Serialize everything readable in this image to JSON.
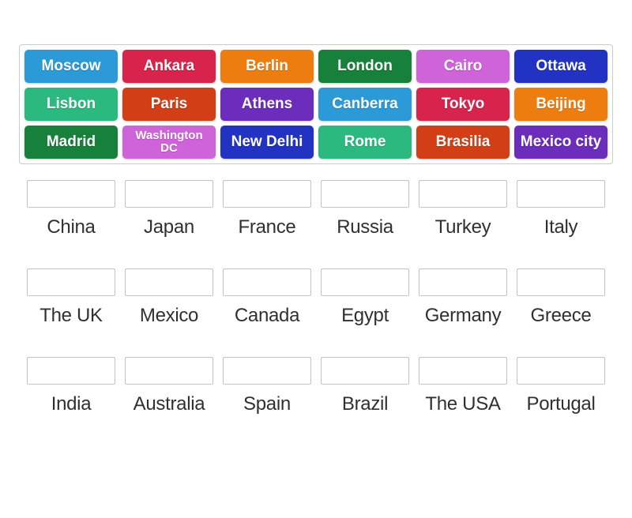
{
  "board": {
    "tiles": [
      {
        "label": "Moscow",
        "color": "#2d9ad8"
      },
      {
        "label": "Ankara",
        "color": "#d8244c"
      },
      {
        "label": "Berlin",
        "color": "#ee7d10"
      },
      {
        "label": "London",
        "color": "#17803a"
      },
      {
        "label": "Cairo",
        "color": "#cf63d9"
      },
      {
        "label": "Ottawa",
        "color": "#2233c4"
      },
      {
        "label": "Lisbon",
        "color": "#2cb97f"
      },
      {
        "label": "Paris",
        "color": "#d23f17"
      },
      {
        "label": "Athens",
        "color": "#6c2cbc"
      },
      {
        "label": "Canberra",
        "color": "#2d9ad8"
      },
      {
        "label": "Tokyo",
        "color": "#d8244c"
      },
      {
        "label": "Beijing",
        "color": "#ee7d10"
      },
      {
        "label": "Madrid",
        "color": "#17803a"
      },
      {
        "label": "Washington\nDC",
        "color": "#cf63d9",
        "small": true
      },
      {
        "label": "New Delhi",
        "color": "#2233c4"
      },
      {
        "label": "Rome",
        "color": "#2cb97f"
      },
      {
        "label": "Brasilia",
        "color": "#d23f17"
      },
      {
        "label": "Mexico city",
        "color": "#6c2cbc"
      }
    ]
  },
  "answers": [
    {
      "country": "China"
    },
    {
      "country": "Japan"
    },
    {
      "country": "France"
    },
    {
      "country": "Russia"
    },
    {
      "country": "Turkey"
    },
    {
      "country": "Italy"
    },
    {
      "country": "The UK"
    },
    {
      "country": "Mexico"
    },
    {
      "country": "Canada"
    },
    {
      "country": "Egypt"
    },
    {
      "country": "Germany"
    },
    {
      "country": "Greece"
    },
    {
      "country": "India"
    },
    {
      "country": "Australia"
    },
    {
      "country": "Spain"
    },
    {
      "country": "Brazil"
    },
    {
      "country": "The USA"
    },
    {
      "country": "Portugal"
    }
  ]
}
